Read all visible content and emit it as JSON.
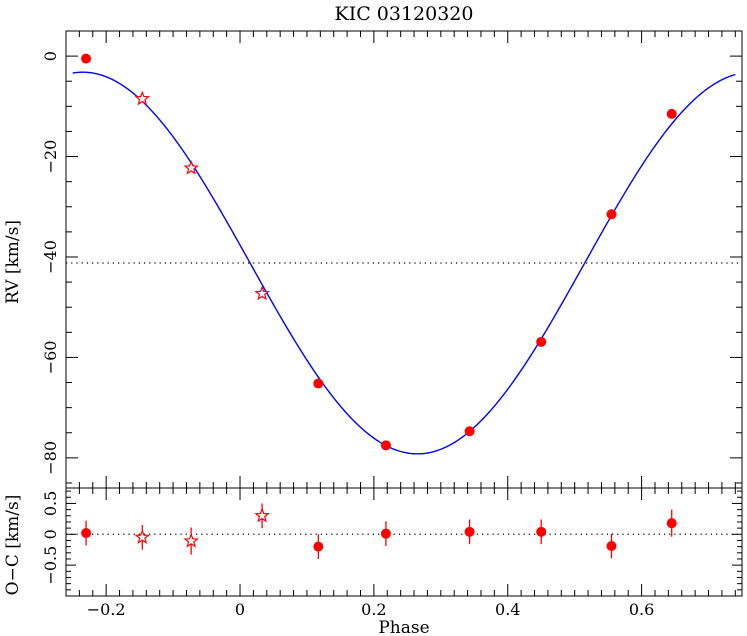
{
  "chart_data": [
    {
      "type": "scatter",
      "title": "KIC 03120320",
      "xlabel": "",
      "ylabel": "RV [km/s]",
      "xlim": [
        -0.26,
        0.75
      ],
      "ylim": [
        -86,
        5
      ],
      "xticks": [
        -0.2,
        0,
        0.2,
        0.4,
        0.6
      ],
      "xticklabels": [
        "",
        "",
        "",
        "",
        ""
      ],
      "yticks": [
        0,
        -20,
        -40,
        -60,
        -80
      ],
      "yticklabels": [
        "0",
        "−20",
        "−40",
        "−60",
        "−80"
      ],
      "reference_line": {
        "y": -41.2,
        "style": "dotted"
      },
      "model_curve": {
        "gamma": -41.2,
        "K": 38.0,
        "phase_of_minimum": 0.265,
        "color": "#0000ff"
      },
      "series": [
        {
          "marker": "filled-circle",
          "color": "#ff0000",
          "x": [
            -0.23,
            0.117,
            0.218,
            0.343,
            0.45,
            0.555,
            0.645
          ],
          "y": [
            -0.5,
            -65.2,
            -77.5,
            -74.7,
            -56.9,
            -31.5,
            -11.5
          ]
        },
        {
          "marker": "open-star",
          "color": "#ff0000",
          "x": [
            -0.146,
            -0.073,
            0.033
          ],
          "y": [
            -8.5,
            -22.3,
            -47.3
          ]
        }
      ]
    },
    {
      "type": "scatter",
      "title": "",
      "xlabel": "Phase",
      "ylabel": "O−C [km/s]",
      "xlim": [
        -0.26,
        0.75
      ],
      "ylim": [
        -1.0,
        0.75
      ],
      "xticks": [
        -0.2,
        0,
        0.2,
        0.4,
        0.6
      ],
      "xticklabels": [
        "−0.2",
        "0",
        "0.2",
        "0.4",
        "0.6"
      ],
      "yticks": [
        0.5,
        0,
        -0.5
      ],
      "yticklabels": [
        "0.5",
        "0",
        "−0.5"
      ],
      "reference_line": {
        "y": 0,
        "style": "dotted"
      },
      "series": [
        {
          "marker": "filled-circle",
          "color": "#ff0000",
          "x": [
            -0.23,
            0.117,
            0.218,
            0.343,
            0.45,
            0.555,
            0.645
          ],
          "y": [
            0.02,
            -0.2,
            0.01,
            0.04,
            0.04,
            -0.19,
            0.18
          ],
          "yerr": [
            0.2,
            0.2,
            0.2,
            0.2,
            0.2,
            0.2,
            0.22
          ]
        },
        {
          "marker": "open-star",
          "color": "#ff0000",
          "x": [
            -0.146,
            -0.073,
            0.033
          ],
          "y": [
            -0.05,
            -0.11,
            0.3
          ],
          "yerr": [
            0.2,
            0.22,
            0.2
          ]
        }
      ]
    }
  ]
}
